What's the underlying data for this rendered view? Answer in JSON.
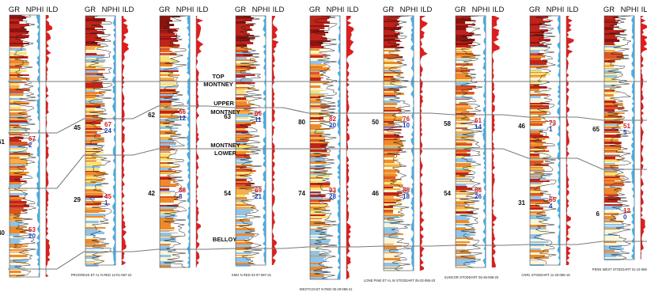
{
  "track_labels": {
    "gr": "GR",
    "nphi": "NPHI",
    "ild": "ILD"
  },
  "formation_tops": [
    {
      "key": "top_montney",
      "lines": [
        "TOP",
        "MONTNEY"
      ]
    },
    {
      "key": "upper_montney",
      "lines": [
        "UPPER",
        "MONTNEY"
      ]
    },
    {
      "key": "lower_montney",
      "lines": [
        "MONTNEY",
        "LOWER"
      ]
    },
    {
      "key": "belloy",
      "lines": [
        "BELLOY"
      ]
    }
  ],
  "wells": [
    {
      "id": "w1",
      "name": "",
      "upper_left": "61",
      "upper_red": "67",
      "upper_blue": "2",
      "lower_left": "40",
      "lower_red": "53",
      "lower_blue": "20"
    },
    {
      "id": "w2",
      "name": "PROGRESS ET AL N RED 12-01-087-22",
      "upper_left": "45",
      "upper_red": "67",
      "upper_blue": "24",
      "lower_left": "29",
      "lower_red": "45",
      "lower_blue": "1"
    },
    {
      "id": "w3",
      "name": "",
      "upper_left": "62",
      "upper_red": "66",
      "upper_blue": "12",
      "lower_left": "42",
      "lower_red": "68",
      "lower_blue": "8"
    },
    {
      "id": "w4",
      "name": "KMG N RED 02-07-087-21",
      "upper_left": "63",
      "upper_red": "66",
      "upper_blue": "11",
      "lower_left": "54",
      "lower_red": "69",
      "lower_blue": "21"
    },
    {
      "id": "w5",
      "name": "WESTCOAST N RED 05-29-086-21",
      "upper_left": "80",
      "upper_red": "82",
      "upper_blue": "20",
      "lower_left": "74",
      "lower_red": "93",
      "lower_blue": "28"
    },
    {
      "id": "w6",
      "name": "LONE PINE ET AL W STODDART 05-33-086-20",
      "upper_left": "50",
      "upper_red": "76",
      "upper_blue": "10",
      "lower_left": "46",
      "lower_red": "86",
      "lower_blue": "18"
    },
    {
      "id": "w7",
      "name": "SUNCOR STODDART 06-35-086-20",
      "upper_left": "58",
      "upper_red": "61",
      "upper_blue": "14",
      "lower_left": "54",
      "lower_red": "86",
      "lower_blue": "26"
    },
    {
      "id": "w8",
      "name": "CNRL STODDART 11-20-086-19",
      "upper_left": "46",
      "upper_red": "73",
      "upper_blue": "1",
      "lower_left": "31",
      "lower_red": "65",
      "lower_blue": "4"
    },
    {
      "id": "w9",
      "name": "PENN WEST STODDART 01-15-086-",
      "upper_left": "65",
      "upper_red": "51",
      "upper_blue": "5",
      "lower_left": "6",
      "lower_red": "13",
      "lower_blue": "0"
    }
  ],
  "colors": {
    "correlation_line": "#7a7a7a",
    "ild_fill": "#e01d1d",
    "nphi_fill": "#2aa0dc",
    "gr_trace": "#1a1a1a",
    "facies_hot": "#c0231a",
    "facies_orange": "#ee8a2c",
    "facies_yellow": "#f6e27a",
    "facies_cream": "#fbf5d6",
    "facies_blue": "#8fc3ea"
  }
}
